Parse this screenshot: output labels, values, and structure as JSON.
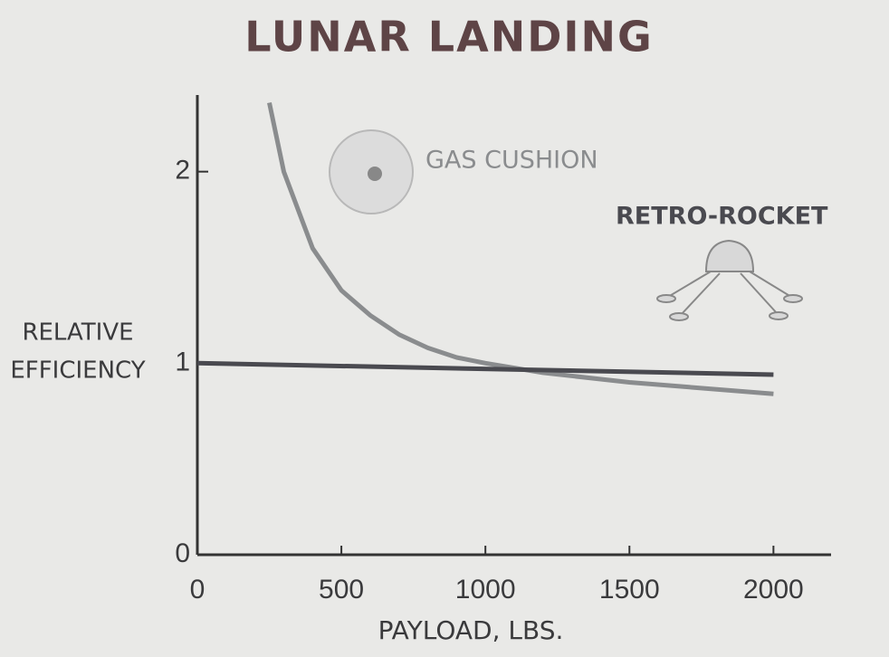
{
  "chart_data": {
    "type": "line",
    "title": "LUNAR LANDING",
    "x_label": "PAYLOAD, LBS.",
    "y_label": [
      "RELATIVE",
      "EFFICIENCY"
    ],
    "xlim": [
      0,
      2200
    ],
    "ylim": [
      0,
      2.4
    ],
    "xticks": [
      0,
      500,
      1000,
      1500,
      2000
    ],
    "yticks": [
      0,
      1,
      2
    ],
    "series": [
      {
        "name": "GAS CUSHION",
        "color": "#8a8c8e",
        "x": [
          250,
          300,
          400,
          500,
          600,
          700,
          800,
          900,
          1000,
          1200,
          1500,
          2000
        ],
        "values": [
          2.36,
          2.0,
          1.6,
          1.38,
          1.25,
          1.15,
          1.08,
          1.03,
          1.0,
          0.95,
          0.9,
          0.84
        ]
      },
      {
        "name": "RETRO-ROCKET",
        "color": "#4a4a50",
        "x": [
          0,
          2000
        ],
        "values": [
          1.0,
          0.94
        ]
      }
    ]
  }
}
